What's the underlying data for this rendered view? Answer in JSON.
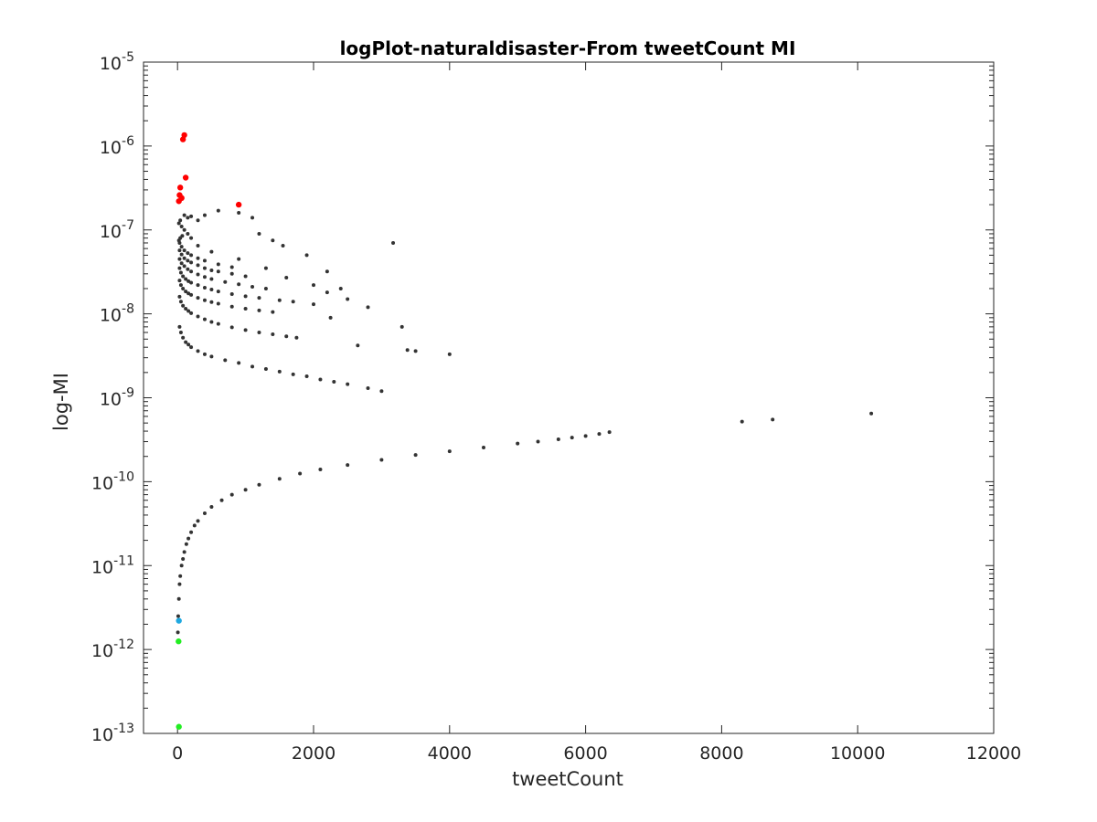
{
  "chart_data": {
    "type": "scatter",
    "title": "logPlot-naturaldisaster-From tweetCount MI",
    "xlabel": "tweetCount",
    "ylabel": "log-MI",
    "xlim": [
      -500,
      12000
    ],
    "ylim": [
      1e-13,
      1e-05
    ],
    "yscale": "log",
    "x_ticks": [
      0,
      2000,
      4000,
      6000,
      8000,
      10000,
      12000
    ],
    "x_tick_labels": [
      "0",
      "2000",
      "4000",
      "6000",
      "8000",
      "10000",
      "12000"
    ],
    "y_ticks": [
      1e-13,
      1e-12,
      1e-11,
      1e-10,
      1e-09,
      1e-08,
      1e-07,
      1e-06,
      1e-05
    ],
    "y_tick_labels": [
      {
        "base": "10",
        "exp": "-13"
      },
      {
        "base": "10",
        "exp": "-12"
      },
      {
        "base": "10",
        "exp": "-11"
      },
      {
        "base": "10",
        "exp": "-10"
      },
      {
        "base": "10",
        "exp": "-9"
      },
      {
        "base": "10",
        "exp": "-8"
      },
      {
        "base": "10",
        "exp": "-7"
      },
      {
        "base": "10",
        "exp": "-6"
      },
      {
        "base": "10",
        "exp": "-5"
      }
    ],
    "grid": false,
    "legend": "none",
    "colors": {
      "main": "#333333",
      "highlight_high": "#ff0000",
      "highlight_mid": "#1fa8e0",
      "highlight_low": "#22ee22",
      "axes": "#262626"
    },
    "series": [
      {
        "color_key": "main",
        "x": [
          5,
          10,
          20,
          30,
          40,
          60,
          80,
          100,
          130,
          160,
          200,
          250,
          300,
          400,
          500,
          650,
          800,
          1000,
          1200,
          1500,
          1800,
          2100,
          2500,
          3000,
          3500,
          4000,
          4500,
          5000,
          5300,
          5600,
          5800,
          6000,
          6200,
          6350,
          8300,
          8750,
          10200
        ],
        "y": [
          1.6e-12,
          2.5e-12,
          4e-12,
          6e-12,
          7.5e-12,
          1e-11,
          1.2e-11,
          1.45e-11,
          1.8e-11,
          2.1e-11,
          2.5e-11,
          3e-11,
          3.4e-11,
          4.2e-11,
          5e-11,
          6e-11,
          7e-11,
          8e-11,
          9.2e-11,
          1.08e-10,
          1.25e-10,
          1.4e-10,
          1.58e-10,
          1.82e-10,
          2.08e-10,
          2.3e-10,
          2.55e-10,
          2.85e-10,
          3e-10,
          3.2e-10,
          3.35e-10,
          3.5e-10,
          3.7e-10,
          3.9e-10,
          5.2e-10,
          5.5e-10,
          6.5e-10
        ]
      },
      {
        "color_key": "main",
        "x": [
          30,
          50,
          80,
          120,
          160,
          200,
          300,
          400,
          500,
          700,
          900,
          1100,
          1300,
          1500,
          1700,
          1900,
          2100,
          2300,
          2500,
          2800,
          3000
        ],
        "y": [
          7e-09,
          6e-09,
          5.2e-09,
          4.6e-09,
          4.3e-09,
          4e-09,
          3.6e-09,
          3.3e-09,
          3.1e-09,
          2.8e-09,
          2.6e-09,
          2.35e-09,
          2.2e-09,
          2.05e-09,
          1.9e-09,
          1.8e-09,
          1.65e-09,
          1.55e-09,
          1.45e-09,
          1.3e-09,
          1.2e-09
        ]
      },
      {
        "color_key": "main",
        "x": [
          30,
          50,
          80,
          120,
          160,
          200,
          300,
          400,
          500,
          600,
          800,
          1000,
          1200,
          1400,
          1600,
          1750
        ],
        "y": [
          1.6e-08,
          1.4e-08,
          1.25e-08,
          1.15e-08,
          1.08e-08,
          1.02e-08,
          9.3e-09,
          8.6e-09,
          8e-09,
          7.6e-09,
          6.9e-09,
          6.4e-09,
          6e-09,
          5.7e-09,
          5.4e-09,
          5.2e-09
        ]
      },
      {
        "color_key": "main",
        "x": [
          30,
          50,
          80,
          120,
          160,
          200,
          300,
          400,
          500,
          600,
          800,
          1000,
          1200,
          1400
        ],
        "y": [
          2.5e-08,
          2.2e-08,
          2e-08,
          1.85e-08,
          1.75e-08,
          1.68e-08,
          1.55e-08,
          1.45e-08,
          1.38e-08,
          1.32e-08,
          1.22e-08,
          1.15e-08,
          1.1e-08,
          1.05e-08
        ]
      },
      {
        "color_key": "main",
        "x": [
          30,
          50,
          80,
          120,
          160,
          200,
          300,
          400,
          500,
          600,
          800,
          1000,
          1200,
          1500,
          1700
        ],
        "y": [
          3.5e-08,
          3.1e-08,
          2.8e-08,
          2.6e-08,
          2.45e-08,
          2.35e-08,
          2.2e-08,
          2.05e-08,
          1.95e-08,
          1.85e-08,
          1.72e-08,
          1.62e-08,
          1.55e-08,
          1.45e-08,
          1.4e-08
        ]
      },
      {
        "color_key": "main",
        "x": [
          30,
          60,
          100,
          150,
          200,
          300,
          400,
          500,
          700,
          900,
          1100,
          1300
        ],
        "y": [
          4.5e-08,
          4e-08,
          3.7e-08,
          3.4e-08,
          3.2e-08,
          2.95e-08,
          2.75e-08,
          2.6e-08,
          2.4e-08,
          2.25e-08,
          2.1e-08,
          2e-08
        ]
      },
      {
        "color_key": "main",
        "x": [
          30,
          60,
          100,
          150,
          200,
          300,
          400,
          500,
          600,
          800,
          1000
        ],
        "y": [
          5.7e-08,
          5.1e-08,
          4.6e-08,
          4.3e-08,
          4.1e-08,
          3.8e-08,
          3.5e-08,
          3.3e-08,
          3.2e-08,
          3e-08,
          2.8e-08
        ]
      },
      {
        "color_key": "main",
        "x": [
          30,
          60,
          100,
          150,
          200,
          300,
          400,
          600,
          800
        ],
        "y": [
          7e-08,
          6.3e-08,
          5.7e-08,
          5.3e-08,
          5e-08,
          4.6e-08,
          4.3e-08,
          3.9e-08,
          3.6e-08
        ]
      },
      {
        "color_key": "main",
        "x": [
          20,
          40,
          70,
          100,
          150,
          200,
          300,
          500,
          900,
          1300,
          1600,
          2000,
          2200,
          2500,
          2800
        ],
        "y": [
          7.5e-08,
          8e-08,
          8.5e-08,
          1e-07,
          9e-08,
          8e-08,
          6.5e-08,
          5.5e-08,
          4.5e-08,
          3.5e-08,
          2.7e-08,
          2.2e-08,
          1.8e-08,
          1.5e-08,
          1.2e-08
        ]
      },
      {
        "color_key": "main",
        "x": [
          20,
          40,
          60,
          100,
          150,
          200,
          300,
          400,
          600,
          900,
          1100,
          1200,
          1400,
          1550,
          1900,
          2000,
          2200,
          2250,
          2400,
          2650,
          3170,
          3300,
          3380,
          3500,
          4000
        ],
        "y": [
          1.2e-07,
          1.3e-07,
          1.1e-07,
          1.5e-07,
          1.4e-07,
          1.45e-07,
          1.3e-07,
          1.5e-07,
          1.7e-07,
          1.6e-07,
          1.4e-07,
          9e-08,
          7.5e-08,
          6.5e-08,
          5e-08,
          1.3e-08,
          3.2e-08,
          9e-09,
          2e-08,
          4.2e-09,
          7e-08,
          7e-09,
          3.7e-09,
          3.6e-09,
          3.3e-09
        ]
      },
      {
        "color_key": "highlight_high",
        "x": [
          20,
          30,
          40,
          60,
          80,
          100,
          120,
          900
        ],
        "y": [
          2.2e-07,
          2.6e-07,
          3.2e-07,
          2.4e-07,
          1.2e-06,
          1.35e-06,
          4.2e-07,
          2e-07
        ]
      },
      {
        "color_key": "highlight_mid",
        "x": [
          20
        ],
        "y": [
          2.2e-12
        ]
      },
      {
        "color_key": "highlight_low",
        "x": [
          15,
          20
        ],
        "y": [
          1.25e-12,
          1.2e-13
        ]
      }
    ]
  }
}
